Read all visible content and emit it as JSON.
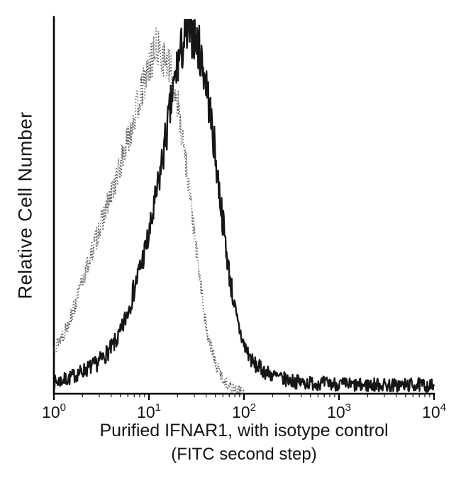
{
  "chart_data": {
    "type": "line",
    "subtype": "flow-cytometry-histogram",
    "title": "",
    "ylabel": "Relative Cell Number",
    "xlabel_line1": "Purified IFNAR1, with isotype control",
    "xlabel_line2": "(FITC second step)",
    "x_scale": "log",
    "x_range": [
      1,
      10000
    ],
    "x_range_log10": [
      0,
      4
    ],
    "ylim": [
      0,
      1
    ],
    "y_ticks": [],
    "grid": false,
    "legend": "none",
    "axis_color": "#000000",
    "x_ticks": [
      {
        "mantissa": "10",
        "exponent": "0",
        "value": 1
      },
      {
        "mantissa": "10",
        "exponent": "1",
        "value": 10
      },
      {
        "mantissa": "10",
        "exponent": "2",
        "value": 100
      },
      {
        "mantissa": "10",
        "exponent": "3",
        "value": 1000
      },
      {
        "mantissa": "10",
        "exponent": "4",
        "value": 10000
      }
    ],
    "series": [
      {
        "name": "Isotype control (FITC second step)",
        "line_style": "dotted",
        "color": "#5a5a5a",
        "noise": 0.04,
        "seed": 13,
        "samples": 520,
        "points_log10x_y": [
          [
            0.0,
            0.12
          ],
          [
            0.1,
            0.16
          ],
          [
            0.2,
            0.22
          ],
          [
            0.3,
            0.3
          ],
          [
            0.4,
            0.38
          ],
          [
            0.5,
            0.46
          ],
          [
            0.6,
            0.53
          ],
          [
            0.7,
            0.61
          ],
          [
            0.8,
            0.7
          ],
          [
            0.9,
            0.79
          ],
          [
            1.0,
            0.87
          ],
          [
            1.08,
            0.93
          ],
          [
            1.15,
            0.9
          ],
          [
            1.22,
            0.87
          ],
          [
            1.3,
            0.78
          ],
          [
            1.4,
            0.6
          ],
          [
            1.5,
            0.38
          ],
          [
            1.6,
            0.18
          ],
          [
            1.7,
            0.08
          ],
          [
            1.8,
            0.03
          ],
          [
            1.9,
            0.012
          ],
          [
            2.0,
            0.005
          ]
        ]
      },
      {
        "name": "Purified IFNAR1 (FITC second step)",
        "line_style": "solid",
        "color": "#161616",
        "noise": 0.05,
        "seed": 7,
        "samples": 680,
        "points_log10x_y": [
          [
            0.0,
            0.03
          ],
          [
            0.15,
            0.04
          ],
          [
            0.3,
            0.06
          ],
          [
            0.45,
            0.08
          ],
          [
            0.6,
            0.12
          ],
          [
            0.7,
            0.16
          ],
          [
            0.8,
            0.24
          ],
          [
            0.9,
            0.33
          ],
          [
            1.0,
            0.42
          ],
          [
            1.1,
            0.56
          ],
          [
            1.2,
            0.72
          ],
          [
            1.3,
            0.88
          ],
          [
            1.38,
            0.95
          ],
          [
            1.45,
            0.97
          ],
          [
            1.52,
            0.93
          ],
          [
            1.6,
            0.84
          ],
          [
            1.68,
            0.68
          ],
          [
            1.76,
            0.5
          ],
          [
            1.84,
            0.33
          ],
          [
            1.92,
            0.2
          ],
          [
            2.0,
            0.13
          ],
          [
            2.1,
            0.08
          ],
          [
            2.25,
            0.055
          ],
          [
            2.4,
            0.04
          ],
          [
            2.6,
            0.03
          ],
          [
            2.8,
            0.028
          ],
          [
            3.0,
            0.026
          ],
          [
            3.2,
            0.022
          ],
          [
            3.4,
            0.024
          ],
          [
            3.6,
            0.022
          ],
          [
            3.8,
            0.024
          ],
          [
            4.0,
            0.02
          ]
        ]
      }
    ]
  }
}
